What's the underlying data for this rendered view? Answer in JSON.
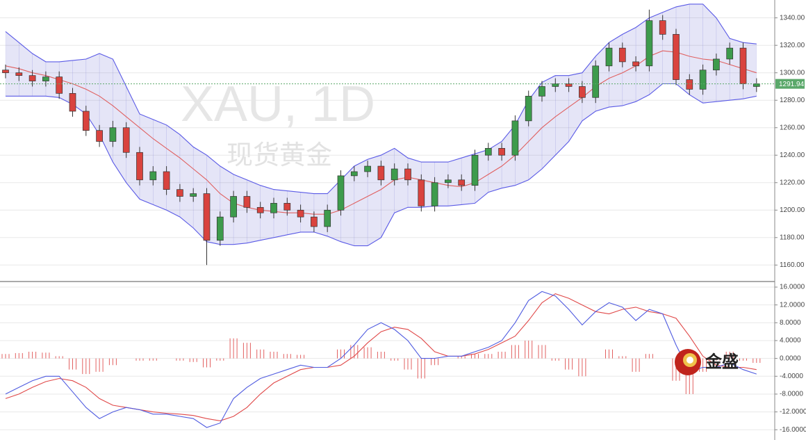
{
  "chart_data": [
    {
      "type": "candlestick",
      "watermark": "XAU, 1D",
      "watermark_sub": "现货黄金",
      "ylim": [
        1148,
        1353
      ],
      "yticks": [
        {
          "value": 1160,
          "label": "1160.00"
        },
        {
          "value": 1180,
          "label": "1180.00"
        },
        {
          "value": 1200,
          "label": "1200.00"
        },
        {
          "value": 1220,
          "label": "1220.00"
        },
        {
          "value": 1240,
          "label": "1240.00"
        },
        {
          "value": 1260,
          "label": "1260.00"
        },
        {
          "value": 1280,
          "label": "1280.00"
        },
        {
          "value": 1300,
          "label": "1300.00"
        },
        {
          "value": 1320,
          "label": "1320.00"
        },
        {
          "value": 1340,
          "label": "1340.00"
        }
      ],
      "grid": true,
      "last_price": 1291.94,
      "up_color": "#3d9b4c",
      "down_color": "#d9433e",
      "band_color": "#5a5ae6",
      "band_fill": "rgba(125,125,215,0.2)",
      "middle_color": "#e06060",
      "last_price_color": "#5aa86a",
      "open": [
        1302,
        1300,
        1298,
        1294,
        1297,
        1285,
        1272,
        1258,
        1250,
        1260,
        1242,
        1222,
        1228,
        1215,
        1210,
        1212,
        1178,
        1195,
        1210,
        1202,
        1198,
        1205,
        1200,
        1195,
        1188,
        1200,
        1225,
        1228,
        1232,
        1222,
        1230,
        1222,
        1203,
        1220,
        1222,
        1218,
        1240,
        1245,
        1240,
        1265,
        1283,
        1290,
        1292,
        1290,
        1282,
        1305,
        1318,
        1308,
        1305,
        1338,
        1328,
        1295,
        1288,
        1302,
        1310,
        1318,
        1290
      ],
      "high": [
        1306,
        1304,
        1302,
        1301,
        1301,
        1289,
        1276,
        1262,
        1265,
        1264,
        1246,
        1232,
        1232,
        1219,
        1216,
        1216,
        1199,
        1214,
        1214,
        1206,
        1209,
        1209,
        1204,
        1199,
        1204,
        1229,
        1232,
        1236,
        1236,
        1234,
        1234,
        1226,
        1224,
        1226,
        1226,
        1244,
        1249,
        1249,
        1269,
        1287,
        1294,
        1296,
        1296,
        1294,
        1309,
        1322,
        1322,
        1312,
        1346,
        1342,
        1332,
        1299,
        1306,
        1314,
        1322,
        1322,
        1296
      ],
      "low": [
        1296,
        1294,
        1290,
        1290,
        1281,
        1268,
        1254,
        1246,
        1246,
        1238,
        1218,
        1218,
        1211,
        1206,
        1206,
        1160,
        1174,
        1191,
        1198,
        1194,
        1194,
        1196,
        1191,
        1184,
        1184,
        1196,
        1221,
        1224,
        1218,
        1218,
        1218,
        1199,
        1199,
        1216,
        1214,
        1214,
        1236,
        1236,
        1236,
        1261,
        1279,
        1286,
        1286,
        1278,
        1278,
        1301,
        1304,
        1301,
        1301,
        1324,
        1291,
        1284,
        1284,
        1298,
        1306,
        1288,
        1286
      ],
      "close": [
        1300,
        1298,
        1294,
        1297,
        1285,
        1272,
        1258,
        1250,
        1260,
        1242,
        1222,
        1228,
        1215,
        1210,
        1212,
        1178,
        1195,
        1210,
        1202,
        1198,
        1205,
        1200,
        1195,
        1188,
        1200,
        1225,
        1228,
        1232,
        1222,
        1230,
        1222,
        1203,
        1220,
        1222,
        1218,
        1240,
        1245,
        1240,
        1265,
        1283,
        1290,
        1292,
        1290,
        1282,
        1305,
        1318,
        1308,
        1305,
        1338,
        1328,
        1295,
        1288,
        1302,
        1310,
        1318,
        1292,
        1292
      ],
      "bands": {
        "upper": [
          1330,
          1322,
          1314,
          1308,
          1308,
          1309,
          1310,
          1314,
          1310,
          1290,
          1270,
          1266,
          1262,
          1255,
          1246,
          1240,
          1232,
          1226,
          1222,
          1218,
          1215,
          1214,
          1213,
          1212,
          1212,
          1222,
          1232,
          1237,
          1240,
          1245,
          1238,
          1235,
          1235,
          1235,
          1238,
          1241,
          1244,
          1250,
          1262,
          1280,
          1293,
          1298,
          1298,
          1300,
          1312,
          1322,
          1328,
          1333,
          1340,
          1344,
          1348,
          1350,
          1350,
          1340,
          1325,
          1322,
          1321
        ],
        "middle": [
          1305,
          1303,
          1300,
          1298,
          1295,
          1292,
          1288,
          1283,
          1276,
          1268,
          1260,
          1252,
          1245,
          1238,
          1230,
          1222,
          1212,
          1205,
          1202,
          1200,
          1199,
          1198,
          1198,
          1197,
          1197,
          1200,
          1205,
          1210,
          1215,
          1222,
          1224,
          1222,
          1220,
          1218,
          1217,
          1220,
          1226,
          1232,
          1240,
          1250,
          1260,
          1268,
          1275,
          1282,
          1290,
          1296,
          1300,
          1305,
          1312,
          1316,
          1315,
          1312,
          1310,
          1309,
          1306,
          1303,
          1300
        ],
        "lower": [
          1283,
          1283,
          1283,
          1283,
          1282,
          1277,
          1270,
          1255,
          1235,
          1220,
          1208,
          1204,
          1200,
          1195,
          1187,
          1177,
          1175,
          1175,
          1176,
          1178,
          1180,
          1182,
          1184,
          1184,
          1181,
          1177,
          1174,
          1174,
          1180,
          1198,
          1202,
          1202,
          1203,
          1203,
          1204,
          1205,
          1213,
          1216,
          1218,
          1222,
          1230,
          1240,
          1250,
          1265,
          1272,
          1275,
          1276,
          1279,
          1284,
          1292,
          1292,
          1284,
          1278,
          1279,
          1280,
          1281,
          1283
        ]
      }
    },
    {
      "type": "macd",
      "ylim": [
        -18.3,
        17.25
      ],
      "yticks": [
        {
          "value": -16,
          "label": "-16.0000"
        },
        {
          "value": -12,
          "label": "-12.0000"
        },
        {
          "value": -8,
          "label": "-8.0000"
        },
        {
          "value": -4,
          "label": "-4.0000"
        },
        {
          "value": 0,
          "label": "0.0000"
        },
        {
          "value": 4,
          "label": "4.0000"
        },
        {
          "value": 8,
          "label": "8.0000"
        },
        {
          "value": 12,
          "label": "12.0000"
        },
        {
          "value": 16,
          "label": "16.0000"
        }
      ],
      "grid": true,
      "logo": "金盛",
      "macd_color": "#4f5be0",
      "signal_color": "#e04848",
      "hist_color": "#e26060",
      "macd": [
        -8,
        -6.5,
        -5,
        -4,
        -4,
        -7.5,
        -11,
        -13.5,
        -12,
        -11,
        -11.5,
        -12.5,
        -12.5,
        -13,
        -13.5,
        -15.5,
        -14.5,
        -9,
        -6.5,
        -4.5,
        -3.5,
        -2.5,
        -1.5,
        -2,
        -2,
        0,
        3,
        6.5,
        8,
        6.5,
        4,
        0,
        0,
        0.5,
        0.5,
        1.5,
        2.5,
        4,
        8,
        13,
        15,
        14,
        11,
        7.5,
        10.5,
        12.5,
        11.5,
        8.5,
        11,
        10,
        3,
        -3,
        -2,
        -2,
        -1,
        -2.5,
        -3.5
      ],
      "signal": [
        -9,
        -8,
        -6.5,
        -5.2,
        -4.5,
        -5,
        -6.5,
        -9,
        -10.5,
        -11,
        -11.5,
        -12,
        -12.3,
        -12.5,
        -12.8,
        -13.5,
        -14,
        -13,
        -11,
        -8,
        -5.5,
        -4,
        -2.5,
        -2,
        -2,
        -1.5,
        0.5,
        3.5,
        6,
        7,
        6.5,
        4.5,
        1.5,
        0.5,
        0.5,
        1,
        2,
        3.5,
        5,
        8.5,
        12.5,
        14.5,
        13.5,
        12,
        10.5,
        10,
        11,
        11.5,
        10.5,
        10,
        9,
        5,
        0.5,
        -1.5,
        -2,
        -2,
        -2.5
      ],
      "histogram": [
        1,
        1.2,
        1.5,
        1.3,
        0.5,
        -2.5,
        -3.5,
        -3,
        -1.5,
        0,
        -0.5,
        -0.5,
        0,
        -0.5,
        -0.8,
        -2,
        -0.5,
        4.5,
        3.5,
        2,
        1.5,
        1,
        0.8,
        0,
        0,
        2,
        3,
        2.5,
        1.5,
        -0.5,
        -2.5,
        -4.5,
        -1.5,
        0,
        0.5,
        1,
        1,
        1.5,
        3,
        4,
        3,
        -0.5,
        -2.5,
        -4,
        0,
        2,
        0.5,
        -3,
        1,
        0,
        -5,
        -8,
        -3,
        -0.5,
        1.5,
        -0.5,
        -1
      ]
    }
  ]
}
